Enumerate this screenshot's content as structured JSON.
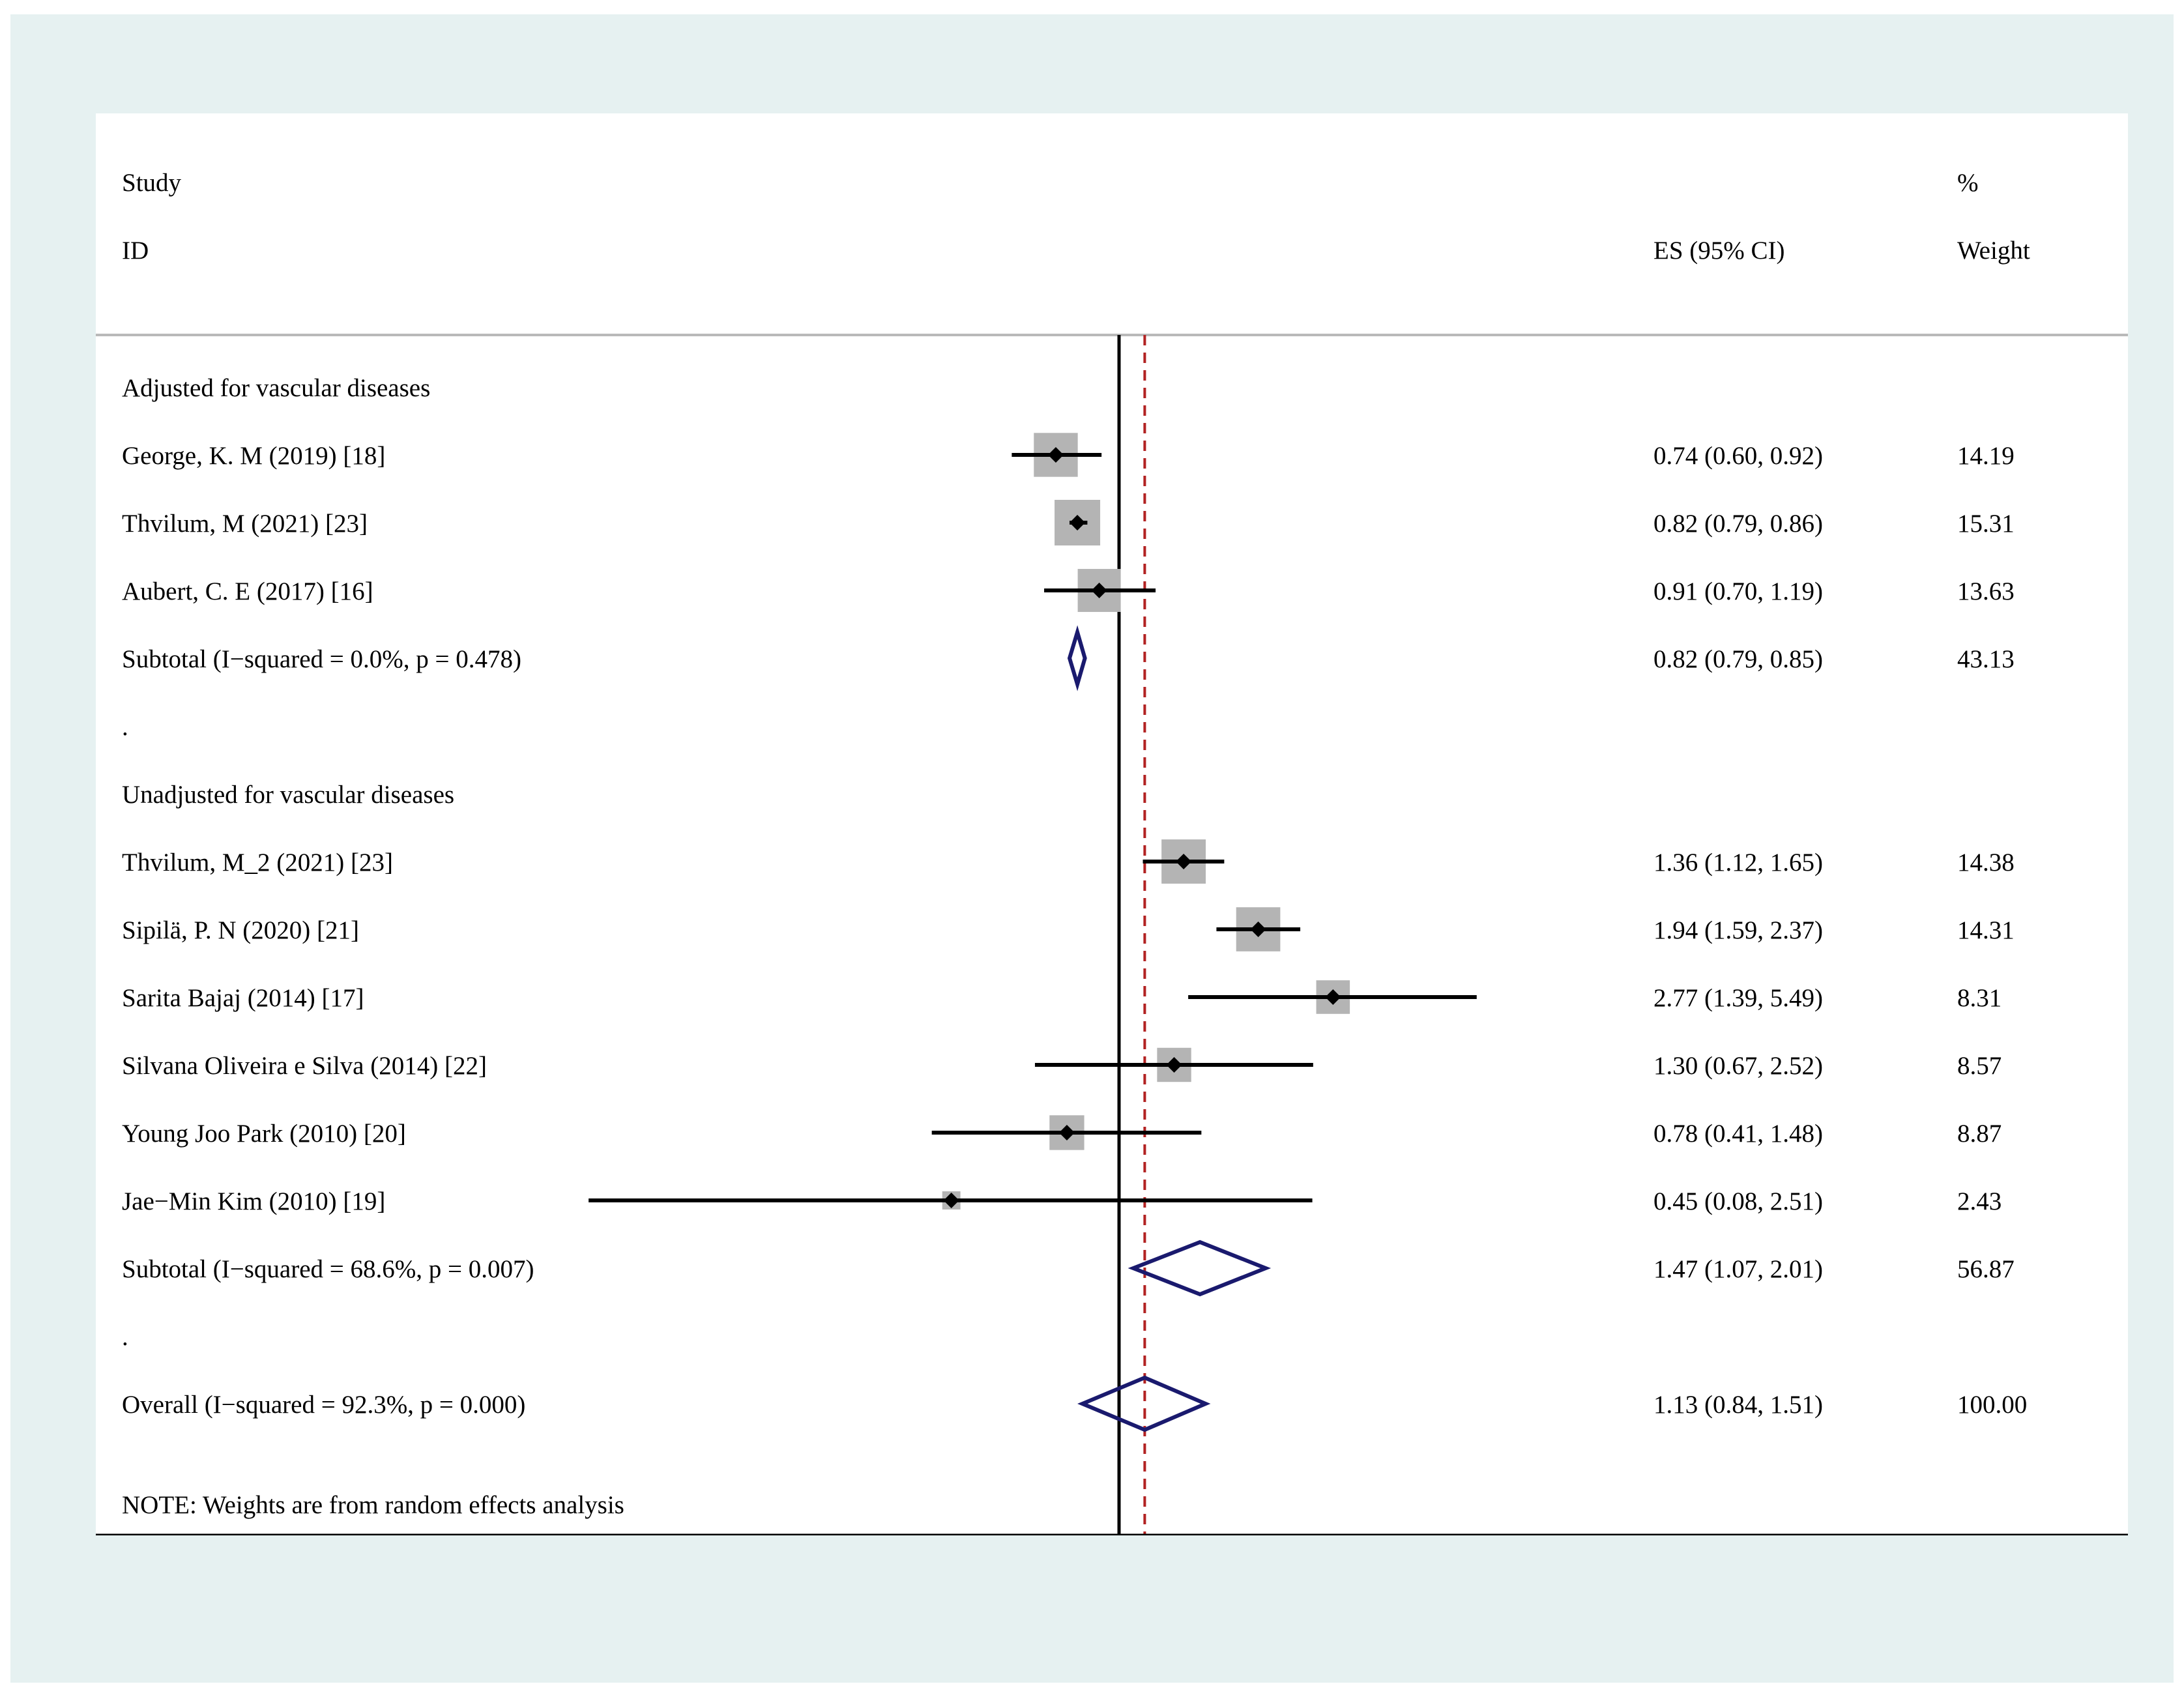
{
  "chart_data": {
    "type": "forest",
    "scale": "log",
    "axis_ticks": [
      0.0807,
      1,
      12.4
    ],
    "axis_tick_labels": [
      "0.0807",
      "1",
      "12.4"
    ],
    "null_line": 1,
    "overall_line": 1.13,
    "headers": {
      "study_line1": "Study",
      "study_line2": "ID",
      "es": "ES (95% CI)",
      "weight_line1": "%",
      "weight_line2": "Weight"
    },
    "rows": [
      {
        "kind": "group",
        "label": "Adjusted for vascular diseases"
      },
      {
        "kind": "study",
        "label": "George, K. M (2019) [18]",
        "es": 0.74,
        "lo": 0.6,
        "hi": 0.92,
        "es_text": "0.74 (0.60, 0.92)",
        "weight": 14.19,
        "weight_text": "14.19"
      },
      {
        "kind": "study",
        "label": "Thvilum, M (2021) [23]",
        "es": 0.82,
        "lo": 0.79,
        "hi": 0.86,
        "es_text": "0.82 (0.79, 0.86)",
        "weight": 15.31,
        "weight_text": "15.31"
      },
      {
        "kind": "study",
        "label": "Aubert, C. E (2017) [16]",
        "es": 0.91,
        "lo": 0.7,
        "hi": 1.19,
        "es_text": "0.91 (0.70, 1.19)",
        "weight": 13.63,
        "weight_text": "13.63"
      },
      {
        "kind": "subtotal",
        "label": "Subtotal  (I−squared = 0.0%, p = 0.478)",
        "es": 0.82,
        "lo": 0.79,
        "hi": 0.85,
        "es_text": "0.82 (0.79, 0.85)",
        "weight": 43.13,
        "weight_text": "43.13"
      },
      {
        "kind": "spacer",
        "label": "."
      },
      {
        "kind": "group",
        "label": "Unadjusted for vascular diseases"
      },
      {
        "kind": "study",
        "label": "Thvilum, M_2 (2021) [23]",
        "es": 1.36,
        "lo": 1.12,
        "hi": 1.65,
        "es_text": "1.36 (1.12, 1.65)",
        "weight": 14.38,
        "weight_text": "14.38"
      },
      {
        "kind": "study",
        "label": "Sipilä, P. N (2020) [21]",
        "es": 1.94,
        "lo": 1.59,
        "hi": 2.37,
        "es_text": "1.94 (1.59, 2.37)",
        "weight": 14.31,
        "weight_text": "14.31"
      },
      {
        "kind": "study",
        "label": "Sarita Bajaj (2014) [17]",
        "es": 2.77,
        "lo": 1.39,
        "hi": 5.49,
        "es_text": "2.77 (1.39, 5.49)",
        "weight": 8.31,
        "weight_text": "8.31"
      },
      {
        "kind": "study",
        "label": "Silvana Oliveira e Silva (2014) [22]",
        "es": 1.3,
        "lo": 0.67,
        "hi": 2.52,
        "es_text": "1.30 (0.67, 2.52)",
        "weight": 8.57,
        "weight_text": "8.57"
      },
      {
        "kind": "study",
        "label": "Young Joo Park (2010) [20]",
        "es": 0.78,
        "lo": 0.41,
        "hi": 1.48,
        "es_text": "0.78 (0.41, 1.48)",
        "weight": 8.87,
        "weight_text": "8.87"
      },
      {
        "kind": "study",
        "label": "Jae−Min Kim (2010) [19]",
        "es": 0.45,
        "lo": 0.08,
        "hi": 2.51,
        "es_text": "0.45 (0.08, 2.51)",
        "weight": 2.43,
        "weight_text": "2.43"
      },
      {
        "kind": "subtotal",
        "label": "Subtotal  (I−squared = 68.6%, p = 0.007)",
        "es": 1.47,
        "lo": 1.07,
        "hi": 2.01,
        "es_text": "1.47 (1.07, 2.01)",
        "weight": 56.87,
        "weight_text": "56.87"
      },
      {
        "kind": "spacer",
        "label": "."
      },
      {
        "kind": "overall",
        "label": "Overall  (I−squared = 92.3%, p = 0.000)",
        "es": 1.13,
        "lo": 0.84,
        "hi": 1.51,
        "es_text": "1.13 (0.84, 1.51)",
        "weight": 100.0,
        "weight_text": "100.00"
      }
    ],
    "note": "NOTE: Weights are from random effects analysis",
    "colors": {
      "weight_box": "#b4b4b4",
      "diamond": "#1a1a6e",
      "overall_line": "#b22222",
      "frame_background": "#e6f1f1"
    }
  }
}
